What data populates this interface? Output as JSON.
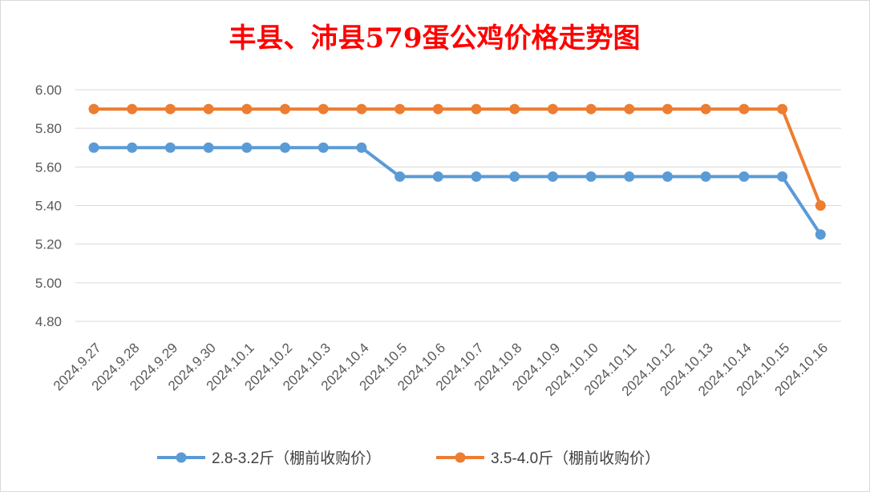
{
  "chart_data": {
    "type": "line",
    "title": "丰县、沛县579蛋公鸡价格走势图",
    "title_color": "#ff0000",
    "xlabel": "",
    "ylabel": "",
    "ylim": [
      4.8,
      6.0
    ],
    "yticks": [
      6.0,
      5.8,
      5.6,
      5.4,
      5.2,
      5.0,
      4.8
    ],
    "ytick_labels": [
      "6.00",
      "5.80",
      "5.60",
      "5.40",
      "5.20",
      "5.00",
      "4.80"
    ],
    "grid": true,
    "legend_position": "bottom",
    "categories": [
      "2024.9.27",
      "2024.9.28",
      "2024.9.29",
      "2024.9.30",
      "2024.10.1",
      "2024.10.2",
      "2024.10.3",
      "2024.10.4",
      "2024.10.5",
      "2024.10.6",
      "2024.10.7",
      "2024.10.8",
      "2024.10.9",
      "2024.10.10",
      "2024.10.11",
      "2024.10.12",
      "2024.10.13",
      "2024.10.14",
      "2024.10.15",
      "2024.10.16"
    ],
    "series": [
      {
        "name": "2.8-3.2斤（棚前收购价）",
        "color": "#5b9bd5",
        "values": [
          5.7,
          5.7,
          5.7,
          5.7,
          5.7,
          5.7,
          5.7,
          5.7,
          5.55,
          5.55,
          5.55,
          5.55,
          5.55,
          5.55,
          5.55,
          5.55,
          5.55,
          5.55,
          5.55,
          5.25
        ]
      },
      {
        "name": "3.5-4.0斤（棚前收购价）",
        "color": "#ed7d31",
        "values": [
          5.9,
          5.9,
          5.9,
          5.9,
          5.9,
          5.9,
          5.9,
          5.9,
          5.9,
          5.9,
          5.9,
          5.9,
          5.9,
          5.9,
          5.9,
          5.9,
          5.9,
          5.9,
          5.9,
          5.4
        ]
      }
    ]
  }
}
